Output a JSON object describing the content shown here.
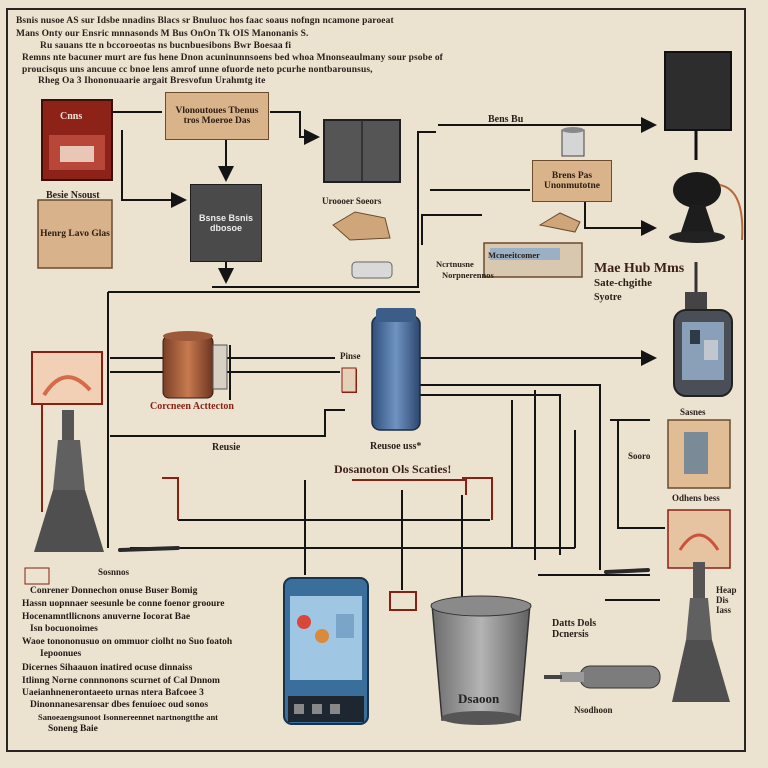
{
  "header": {
    "lines": [
      "Bsnis nusoe AS sur Idsbe nnadins Blacs sr Bnuluoc hos faac soaus nofngn ncamone paroeat",
      "Mans Onty our Ensric mnnasonds M Bus OnOn Tk OIS Manonanis S.",
      "Ru sauans tte n bccoroeotas ns bucnbuesibons Bwr Boesaa fi",
      "Remns nte bacuner murt are fus hene Dnon acuninunnsoens bed whoa Mnonseaulmany sour psobe of",
      "proucisqus uns ancuue cc bnoe lens amrof unne ofuorde neto pcurhe nontbarounsus,",
      "Rheg Oa 3 Ihononuaarie argait Bresvofun Urahmtg ite"
    ]
  },
  "nodes": {
    "red_card": {
      "label": "Cnns"
    },
    "red_card_caption": "Besie Nsoust",
    "tan_card_left": {
      "label": "Henrg Lavo Glas"
    },
    "top_label_card": {
      "label": "Vlonoutoues Tbenus tros Moeroe Das"
    },
    "dark_panel": {
      "label": "Bsnse Bsnis dbosoe"
    },
    "bengs": "Bens Bu",
    "uroooer": "Uroooer Soeors",
    "right_card": {
      "label": "Brens Pas Unonmutotne"
    },
    "mid_strip": "Mcneeitcomer",
    "mid_strip_sub": "Ncrtnusne",
    "mid_strip_sub2": "Norpnerennos",
    "hub": {
      "title": "Mae Hub Mms",
      "sub": "Sate-chgithe",
      "sub2": "Syotre"
    },
    "pitch": "Pinse",
    "component_caption": "Corcneen Acttecton",
    "reuse_left": "Reusie",
    "reuse_right": "Reusoe uss*",
    "discharge": "Dosanoton Ols Scaties!",
    "side_top": "Sasnes",
    "side_jar_label": "Sooro",
    "side_mid": "Odhens bess",
    "side_right": "Heap Dis Iass",
    "bin_caption": "Datts Dols Dcnersis",
    "bin_label": "Dsaoon",
    "plug_caption": "Nsodhoon",
    "box_label": "Sosnnos"
  },
  "notes": {
    "lines": [
      "Conrener Donnechon onuse Buser Bomig",
      "Hassn uopnnaer seesunle be conne foenor grooure",
      "Hocenamntllicnons anuverne Iocorat Bae",
      "Isn bocuonoimes",
      "Waoe tonononusuo on ommuor ciolht no Suo foatoh",
      "Iepoonues",
      "Dicernes Sihaauon inatired ocuse dinnaiss",
      "Itlinng Norne connnonons scurnet of Cal Dnnom",
      "Uaeianhnenerontaeeto urnas ntera Bafcoee 3",
      "Dinonnanesarensar dbes fenuioec oud sonos",
      "Sanoeaengsunoot Isonnereennet nartnongtthe ant",
      "Soneng Baie"
    ]
  },
  "colors": {
    "background": "#ebe2d0",
    "line": "#141414",
    "accent_red": "#8a1f14",
    "card_tan": "#d9b48a",
    "panel_dark": "#4a4a4a"
  }
}
